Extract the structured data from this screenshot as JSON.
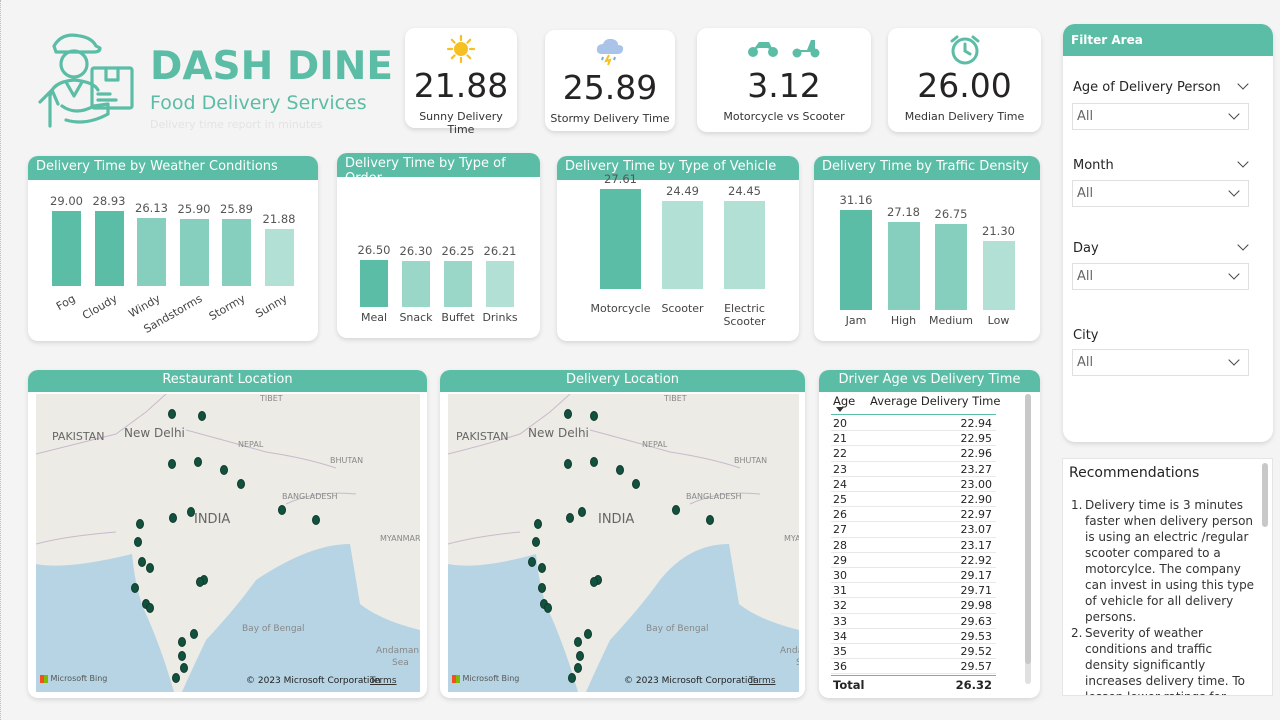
{
  "header": {
    "title": "DASH DINE",
    "subtitle": "Food Delivery Services",
    "note": "Delivery time report in minutes"
  },
  "kpis": [
    {
      "icon": "sun-icon",
      "value": "21.88",
      "label": "Sunny Delivery Time"
    },
    {
      "icon": "storm-cloud-icon",
      "value": "25.89",
      "label": "Stormy Delivery Time"
    },
    {
      "icon": "motorcycle-scooter-icon",
      "value": "3.12",
      "label": "Motorcycle vs Scooter"
    },
    {
      "icon": "clock-icon",
      "value": "26.00",
      "label": "Median Delivery Time"
    }
  ],
  "charts": {
    "weather": {
      "title": "Delivery Time by Weather Conditions"
    },
    "order": {
      "title": "Delivery Time by Type of Order"
    },
    "vehicle": {
      "title": "Delivery Time by Type of Vehicle"
    },
    "traffic": {
      "title": "Delivery Time by Traffic Density"
    }
  },
  "chart_data": [
    {
      "type": "bar",
      "title": "Delivery Time by Weather Conditions",
      "categories": [
        "Fog",
        "Cloudy",
        "Windy",
        "Sandstorms",
        "Stormy",
        "Sunny"
      ],
      "values": [
        29.0,
        28.93,
        26.13,
        25.9,
        25.89,
        21.88
      ],
      "colors": [
        "#5bbda6",
        "#5bbda6",
        "#86cebd",
        "#86cebd",
        "#86cebd",
        "#b2e0d5"
      ]
    },
    {
      "type": "bar",
      "title": "Delivery Time by Type of Order",
      "categories": [
        "Meal",
        "Snack",
        "Buffet",
        "Drinks"
      ],
      "values": [
        26.5,
        26.3,
        26.25,
        26.21
      ],
      "colors": [
        "#5bbda6",
        "#9ad7c8",
        "#9ad7c8",
        "#b2e0d5"
      ]
    },
    {
      "type": "bar",
      "title": "Delivery Time by Type of Vehicle",
      "categories": [
        "Motorcycle",
        "Scooter",
        "Electric Scooter"
      ],
      "values": [
        27.61,
        24.49,
        24.45
      ],
      "colors": [
        "#5bbda6",
        "#b2e0d5",
        "#b2e0d5"
      ]
    },
    {
      "type": "bar",
      "title": "Delivery Time by Traffic Density",
      "categories": [
        "Jam",
        "High",
        "Medium",
        "Low"
      ],
      "values": [
        31.16,
        27.18,
        26.75,
        21.3
      ],
      "colors": [
        "#5bbda6",
        "#86cebd",
        "#86cebd",
        "#b2e0d5"
      ]
    }
  ],
  "maps": {
    "restaurant": {
      "title": "Restaurant Location"
    },
    "delivery": {
      "title": "Delivery Location"
    },
    "labels": {
      "pakistan": "PAKISTAN",
      "new_delhi": "New Delhi",
      "nepal": "NEPAL",
      "bhutan": "BHUTAN",
      "india": "INDIA",
      "bangladesh": "BANGLADESH",
      "myanmar": "MYANMAR",
      "bay": "Bay of Bengal",
      "andaman": "Andaman",
      "sea": "Sea",
      "tibet": "TIBET"
    },
    "bing": "Microsoft Bing",
    "copyright": "© 2023 Microsoft Corporation",
    "terms": "Terms"
  },
  "table": {
    "title": "Driver Age vs Delivery Time",
    "col_age": "Age",
    "col_time": "Average Delivery Time",
    "rows": [
      {
        "age": "20",
        "time": "22.94"
      },
      {
        "age": "21",
        "time": "22.95"
      },
      {
        "age": "22",
        "time": "22.96"
      },
      {
        "age": "23",
        "time": "23.27"
      },
      {
        "age": "24",
        "time": "23.00"
      },
      {
        "age": "25",
        "time": "22.90"
      },
      {
        "age": "26",
        "time": "22.97"
      },
      {
        "age": "27",
        "time": "23.07"
      },
      {
        "age": "28",
        "time": "23.17"
      },
      {
        "age": "29",
        "time": "22.92"
      },
      {
        "age": "30",
        "time": "29.17"
      },
      {
        "age": "31",
        "time": "29.71"
      },
      {
        "age": "32",
        "time": "29.98"
      },
      {
        "age": "33",
        "time": "29.63"
      },
      {
        "age": "34",
        "time": "29.53"
      },
      {
        "age": "35",
        "time": "29.52"
      },
      {
        "age": "36",
        "time": "29.57"
      }
    ],
    "total_label": "Total",
    "total_value": "26.32"
  },
  "filters": {
    "title": "Filter Area",
    "items": [
      {
        "label": "Age of Delivery Person",
        "value": "All"
      },
      {
        "label": "Month",
        "value": "All"
      },
      {
        "label": "Day",
        "value": "All"
      },
      {
        "label": "City",
        "value": "All"
      }
    ]
  },
  "recommendations": {
    "title": "Recommendations",
    "items": [
      {
        "num": "1.",
        "text": "Delivery time is 3 minutes faster when delivery person is using an electric /regular scooter compared to a motorcylce. The company can invest in using this type of vehicle for all delivery persons."
      },
      {
        "num": "2.",
        "text": "Severity of weather conditions and traffic density significantly increases delivery time. To lessen lower ratings for delivery personnel, a notification to the"
      }
    ]
  },
  "colors": {
    "accent": "#5bbda6",
    "mid": "#86cebd",
    "light": "#b2e0d5",
    "pin": "#13513f"
  }
}
